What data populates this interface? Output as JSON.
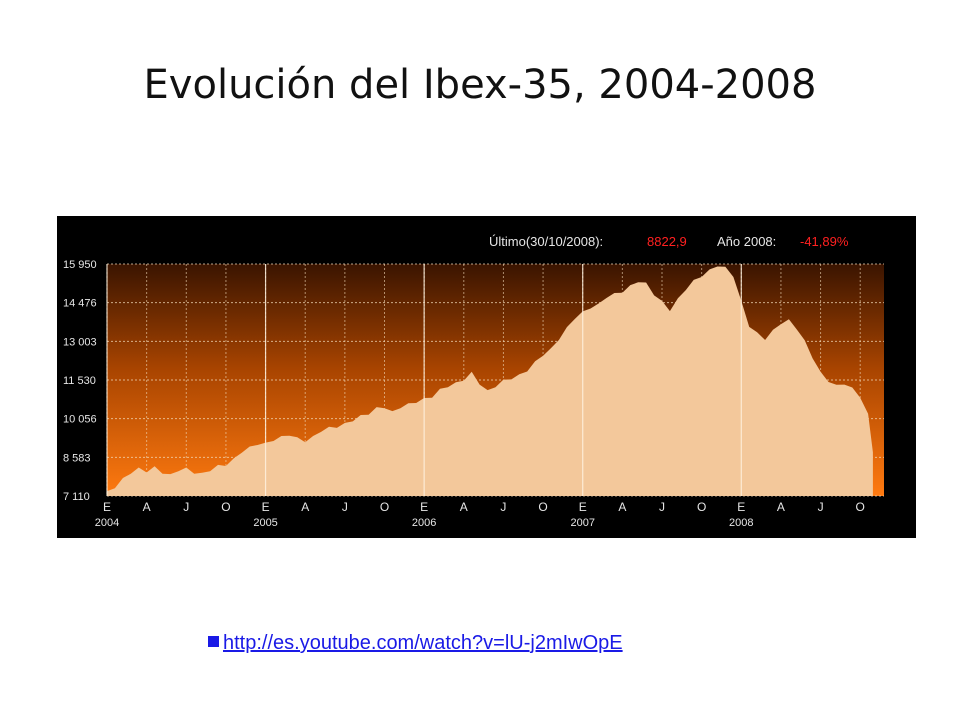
{
  "slide": {
    "title": "Evolución del Ibex-35, 2004-2008",
    "link": "http://es.youtube.com/watch?v=lU-j2mIwOpE"
  },
  "colors": {
    "panel_bg": "#000000",
    "fill_area": "#f3c89b",
    "gradient_top": "#3a1400",
    "gradient_bottom": "#ff7a10",
    "grid": "#f2d9b8",
    "negative": "#ff2020",
    "link": "#1a1ae6"
  },
  "chart_data": {
    "type": "area",
    "header": {
      "last_label": "Último(30/10/2008):",
      "last_value": "8822,9",
      "year_label": "Año 2008:",
      "year_change": "-41,89%"
    },
    "y_ticks": [
      "15 950",
      "14 476",
      "13 003",
      "11 530",
      "10 056",
      "8 583",
      "7 110"
    ],
    "ylim": [
      7110,
      15950
    ],
    "xlim": [
      2004.0,
      2008.9
    ],
    "x_month_ticks": [
      {
        "x": 2004.0,
        "label": "E"
      },
      {
        "x": 2004.25,
        "label": "A"
      },
      {
        "x": 2004.5,
        "label": "J"
      },
      {
        "x": 2004.75,
        "label": "O"
      },
      {
        "x": 2005.0,
        "label": "E"
      },
      {
        "x": 2005.25,
        "label": "A"
      },
      {
        "x": 2005.5,
        "label": "J"
      },
      {
        "x": 2005.75,
        "label": "O"
      },
      {
        "x": 2006.0,
        "label": "E"
      },
      {
        "x": 2006.25,
        "label": "A"
      },
      {
        "x": 2006.5,
        "label": "J"
      },
      {
        "x": 2006.75,
        "label": "O"
      },
      {
        "x": 2007.0,
        "label": "E"
      },
      {
        "x": 2007.25,
        "label": "A"
      },
      {
        "x": 2007.5,
        "label": "J"
      },
      {
        "x": 2007.75,
        "label": "O"
      },
      {
        "x": 2008.0,
        "label": "E"
      },
      {
        "x": 2008.25,
        "label": "A"
      },
      {
        "x": 2008.5,
        "label": "J"
      },
      {
        "x": 2008.75,
        "label": "O"
      }
    ],
    "x_year_labels": [
      {
        "x": 2004.0,
        "label": "2004"
      },
      {
        "x": 2005.0,
        "label": "2005"
      },
      {
        "x": 2006.0,
        "label": "2006"
      },
      {
        "x": 2007.0,
        "label": "2007"
      },
      {
        "x": 2008.0,
        "label": "2008"
      }
    ],
    "series": [
      {
        "x": [
          2004.0,
          2004.05,
          2004.1,
          2004.15,
          2004.2,
          2004.25,
          2004.3,
          2004.35,
          2004.4,
          2004.45,
          2004.5,
          2004.55,
          2004.6,
          2004.65,
          2004.7,
          2004.75,
          2004.8,
          2004.85,
          2004.9,
          2004.95,
          2005.0,
          2005.05,
          2005.1,
          2005.15,
          2005.2,
          2005.25,
          2005.3,
          2005.35,
          2005.4,
          2005.45,
          2005.5,
          2005.55,
          2005.6,
          2005.65,
          2005.7,
          2005.75,
          2005.8,
          2005.85,
          2005.9,
          2005.95,
          2006.0,
          2006.05,
          2006.1,
          2006.15,
          2006.2,
          2006.25,
          2006.3,
          2006.35,
          2006.4,
          2006.45,
          2006.5,
          2006.55,
          2006.6,
          2006.65,
          2006.7,
          2006.75,
          2006.8,
          2006.85,
          2006.9,
          2006.95,
          2007.0,
          2007.05,
          2007.1,
          2007.15,
          2007.2,
          2007.25,
          2007.3,
          2007.35,
          2007.4,
          2007.45,
          2007.5,
          2007.55,
          2007.6,
          2007.65,
          2007.7,
          2007.75,
          2007.8,
          2007.85,
          2007.9,
          2007.95,
          2008.0,
          2008.05,
          2008.1,
          2008.15,
          2008.2,
          2008.25,
          2008.3,
          2008.35,
          2008.4,
          2008.45,
          2008.5,
          2008.55,
          2008.6,
          2008.65,
          2008.7,
          2008.75,
          2008.8,
          2008.83
        ],
        "y": [
          7250,
          7450,
          7750,
          8000,
          8150,
          8050,
          8200,
          8000,
          7900,
          8100,
          8150,
          8000,
          7950,
          8100,
          8250,
          8300,
          8500,
          8800,
          8950,
          9100,
          9100,
          9250,
          9350,
          9450,
          9300,
          9200,
          9350,
          9600,
          9700,
          9750,
          9850,
          10000,
          10150,
          10250,
          10450,
          10500,
          10300,
          10500,
          10600,
          10700,
          10800,
          10900,
          11150,
          11300,
          11400,
          11550,
          11800,
          11400,
          11100,
          11300,
          11500,
          11600,
          11700,
          11900,
          12200,
          12500,
          12700,
          13100,
          13500,
          13900,
          14100,
          14300,
          14400,
          14700,
          14800,
          14900,
          15100,
          15300,
          15200,
          14800,
          14500,
          14200,
          14600,
          15000,
          15300,
          15500,
          15700,
          15900,
          15800,
          15500,
          14500,
          13600,
          13300,
          13100,
          13400,
          13700,
          13800,
          13500,
          13000,
          12400,
          11800,
          11500,
          11300,
          11400,
          11200,
          10900,
          10200,
          8822
        ]
      }
    ]
  }
}
